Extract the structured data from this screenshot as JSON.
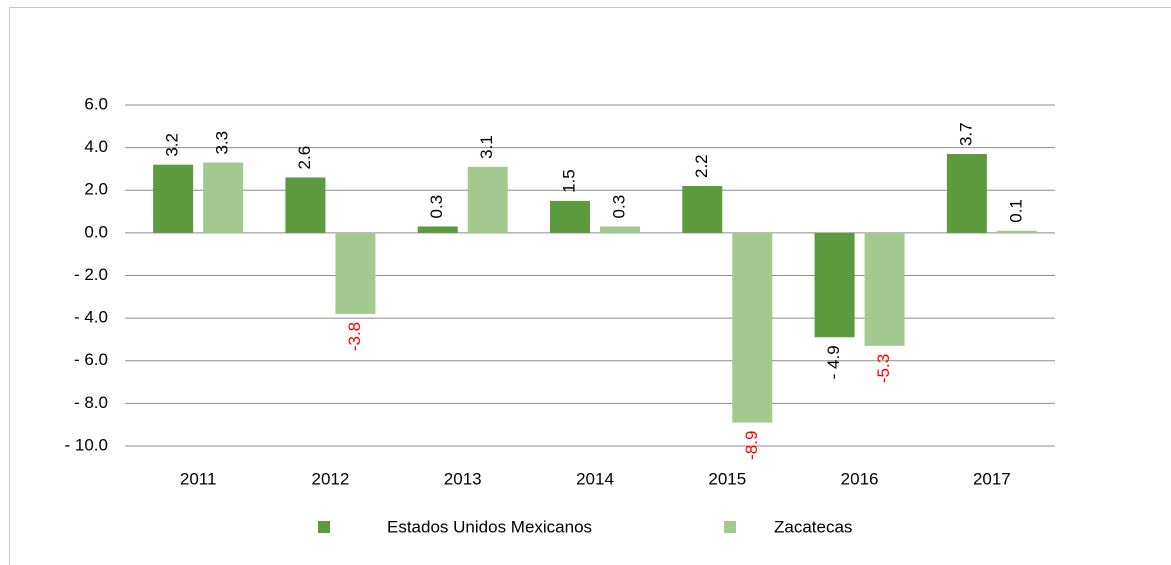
{
  "chart_data": {
    "type": "bar",
    "categories": [
      "2011",
      "2012",
      "2013",
      "2014",
      "2015",
      "2016",
      "2017"
    ],
    "series": [
      {
        "name": "Estados Unidos Mexicanos",
        "color": "#5b9a3d",
        "values": [
          3.2,
          2.6,
          0.3,
          1.5,
          2.2,
          -4.9,
          3.7
        ],
        "value_labels": [
          "3.2",
          "2.6",
          "0.3",
          "1.5",
          "2.2",
          "- 4.9",
          "3.7"
        ]
      },
      {
        "name": "Zacatecas",
        "color": "#a3c98f",
        "values": [
          3.3,
          -3.8,
          3.1,
          0.3,
          -8.9,
          -5.3,
          0.1
        ],
        "value_labels": [
          "3.3",
          "-3.8",
          "3.1",
          "0.3",
          "-8.9",
          "-5.3",
          "0.1"
        ],
        "negative_label_color": "#ff0000"
      }
    ],
    "ylim": [
      -10,
      6
    ],
    "yticks": [
      {
        "value": 6,
        "label": "6.0"
      },
      {
        "value": 4,
        "label": "4.0"
      },
      {
        "value": 2,
        "label": "2.0"
      },
      {
        "value": 0,
        "label": "0.0"
      },
      {
        "value": -2,
        "label": "- 2.0"
      },
      {
        "value": -4,
        "label": "- 4.0"
      },
      {
        "value": -6,
        "label": "- 6.0"
      },
      {
        "value": -8,
        "label": "- 8.0"
      },
      {
        "value": -10,
        "label": "- 10.0"
      }
    ],
    "grid": true,
    "legend": "bottom"
  }
}
